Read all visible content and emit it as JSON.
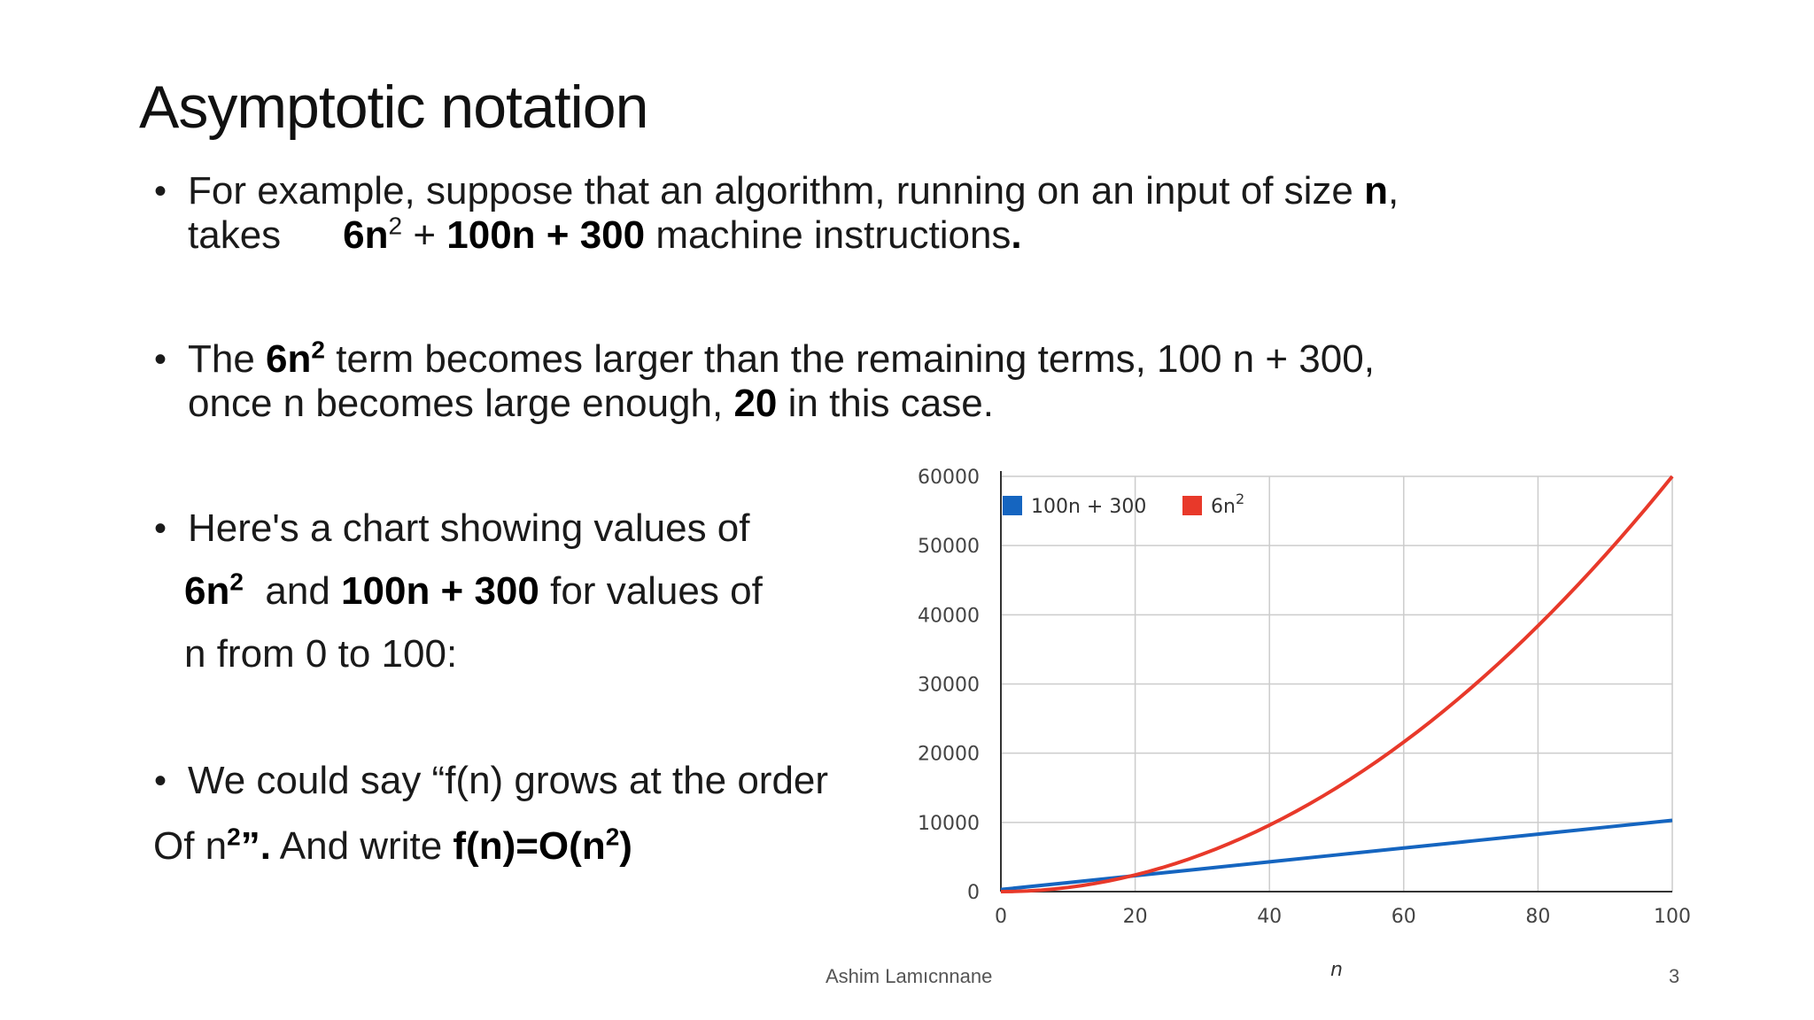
{
  "slide": {
    "title": "Asymptotic notation",
    "b1": {
      "pre": "For example, suppose that an algorithm, running on an input of size ",
      "n": "n",
      "comma": ",",
      "takes": "takes",
      "f_6n": "6n",
      "f_exp": "2",
      "f_plus": " + ",
      "f_rest": "100n + 300",
      "post": " machine instructions",
      "dot": "."
    },
    "b2": {
      "pre": "The ",
      "t_6n": "6n",
      "t_exp": "2",
      "post1": " term becomes larger than the remaining terms, 100 n + 300,",
      "line2_pre": "once n becomes large enough, ",
      "twenty": "20",
      "line2_post": " in this case."
    },
    "b3": {
      "line1": "Here's a chart showing values of",
      "t_6n": "6n",
      "t_exp": "2",
      "and": "  and ",
      "t_lin": "100n + 300",
      "post": " for values of",
      "line3": "n from 0 to 100:"
    },
    "b4": {
      "line1": "We could say “f(n) grows at the order",
      "of": "Of n",
      "exp": "2",
      "quote": "”",
      "dot": ".",
      "and_write": " And write ",
      "f_pre": "f(n)=O(n",
      "f_exp": "2",
      "f_post": ")"
    },
    "bullet_symbol": "•",
    "footer_author": "Ashim Lamıcnnane",
    "footer_page": "3"
  },
  "chart_data": {
    "type": "line",
    "x": [
      0,
      10,
      20,
      30,
      40,
      50,
      60,
      70,
      80,
      90,
      100
    ],
    "series": [
      {
        "name": "100n + 300",
        "color": "#1565c0",
        "values": [
          300,
          1300,
          2300,
          3300,
          4300,
          5300,
          6300,
          7300,
          8300,
          9300,
          10300
        ]
      },
      {
        "name": "6n2",
        "legend_base": "6n",
        "legend_exp": "2",
        "color": "#e8392a",
        "values": [
          0,
          600,
          2400,
          5400,
          9600,
          15000,
          21600,
          29400,
          38400,
          48600,
          60000
        ]
      }
    ],
    "x_ticks": [
      "0",
      "20",
      "40",
      "60",
      "80",
      "100"
    ],
    "y_ticks": [
      "0",
      "10000",
      "20000",
      "30000",
      "40000",
      "50000",
      "60000"
    ],
    "xlim": [
      0,
      100
    ],
    "ylim": [
      0,
      60000
    ],
    "xlabel": "n",
    "ylabel": "",
    "grid": true,
    "legend_position": "top-left"
  }
}
